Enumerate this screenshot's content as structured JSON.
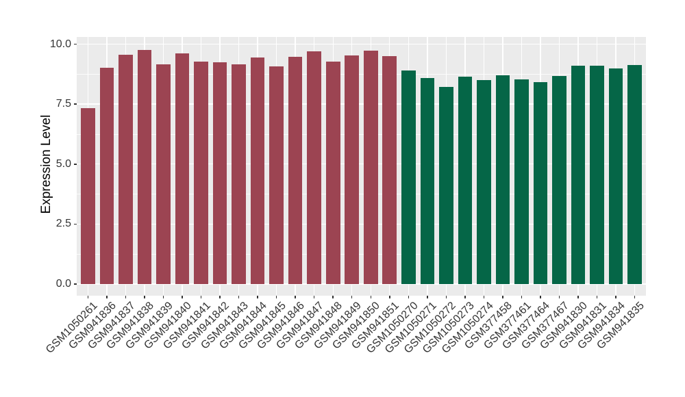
{
  "chart_data": {
    "type": "bar",
    "title": "",
    "xlabel": "",
    "ylabel": "Expression Level",
    "legend": "none",
    "grid": true,
    "bar_orientation": "vertical",
    "categories": [
      "GSM1050261",
      "GSM941836",
      "GSM941837",
      "GSM941838",
      "GSM941839",
      "GSM941840",
      "GSM941841",
      "GSM941842",
      "GSM941843",
      "GSM941844",
      "GSM941845",
      "GSM941846",
      "GSM941847",
      "GSM941848",
      "GSM941849",
      "GSM941850",
      "GSM941851",
      "GSM1050270",
      "GSM1050271",
      "GSM1050272",
      "GSM1050273",
      "GSM1050274",
      "GSM377458",
      "GSM377461",
      "GSM377464",
      "GSM377467",
      "GSM941830",
      "GSM941831",
      "GSM941834",
      "GSM941835"
    ],
    "values": [
      7.33,
      9.01,
      9.55,
      9.76,
      9.16,
      9.62,
      9.27,
      9.23,
      9.17,
      9.44,
      9.08,
      9.48,
      9.69,
      9.28,
      9.54,
      9.74,
      9.5,
      8.91,
      8.6,
      8.21,
      8.64,
      8.51,
      8.69,
      8.52,
      8.43,
      8.66,
      9.11,
      9.1,
      9.0,
      9.14
    ],
    "color_groups": [
      {
        "name": "maroon-group",
        "color": "#9C4452",
        "from_index": 0,
        "to_index": 16
      },
      {
        "name": "green-group",
        "color": "#056647",
        "from_index": 17,
        "to_index": 29
      }
    ],
    "y_ticks": [
      {
        "value": 0,
        "label": "0.0"
      },
      {
        "value": 2.5,
        "label": "2.5"
      },
      {
        "value": 5,
        "label": "5.0"
      },
      {
        "value": 7.5,
        "label": "7.5"
      },
      {
        "value": 10,
        "label": "10.0"
      }
    ],
    "y_minor_ticks": [
      1.25,
      3.75,
      6.25,
      8.75
    ],
    "ylim": [
      -0.49,
      10.31
    ],
    "style": {
      "figure_background": "#FFFFFF",
      "panel_background": "#EBEBEB",
      "gridline_color": "#FFFFFF",
      "tick_color": "#333333",
      "tick_label_color": "#333333",
      "axis_title_color": "#000000"
    }
  }
}
